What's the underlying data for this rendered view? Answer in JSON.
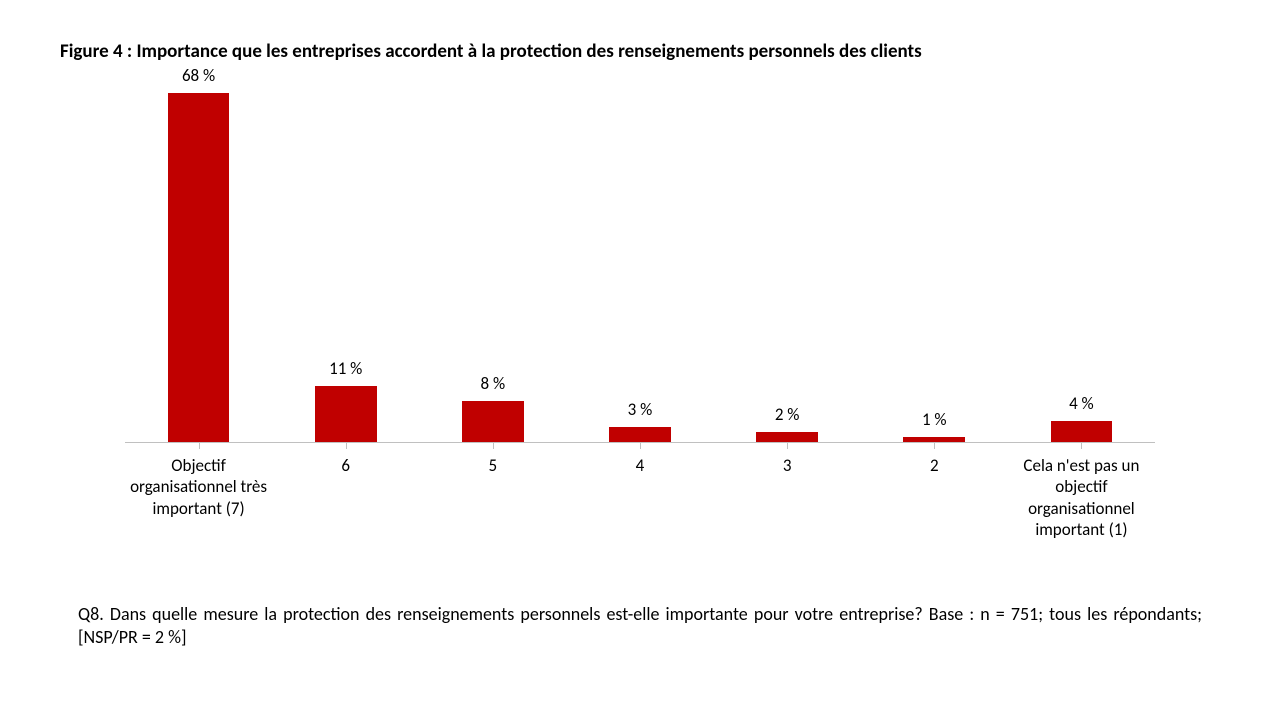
{
  "chart": {
    "type": "bar",
    "title": "Figure 4 : Importance que les entreprises accordent à la protection des renseignements personnels des clients",
    "title_fontsize": 19,
    "title_color": "#000000",
    "title_weight": "bold",
    "categories": [
      "Objectif organisationnel très important (7)",
      "6",
      "5",
      "4",
      "3",
      "2",
      "Cela n'est pas un objectif organisationnel important (1)"
    ],
    "values": [
      68,
      11,
      8,
      3,
      2,
      1,
      4
    ],
    "value_labels": [
      "68 %",
      "11 %",
      "8 %",
      "3 %",
      "2 %",
      "1 %",
      "4 %"
    ],
    "bar_color": "#c00000",
    "background_color": "#ffffff",
    "axis_color": "#c0c0c0",
    "label_fontsize": 17,
    "label_color": "#000000",
    "ymax": 68,
    "bar_width_ratio": 0.42,
    "caption": "Q8. Dans quelle mesure la protection des renseignements personnels est-elle importante pour votre entreprise? Base : n = 751; tous les répondants; [NSP/PR = 2 %]",
    "caption_fontsize": 18
  }
}
